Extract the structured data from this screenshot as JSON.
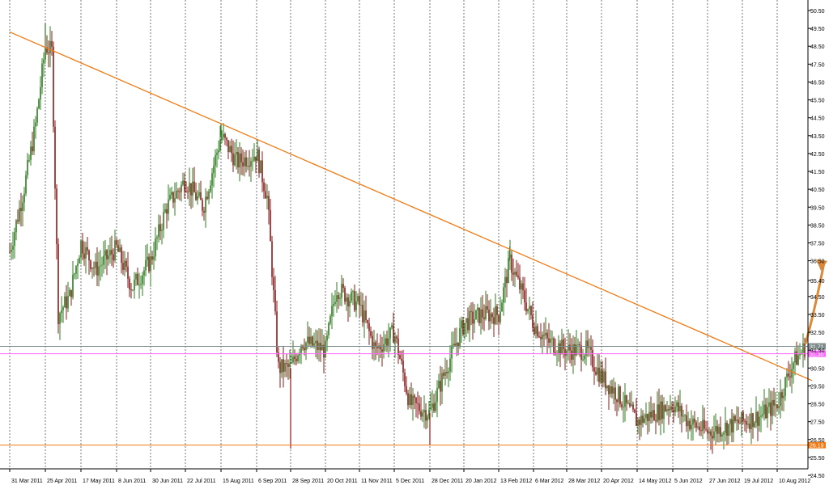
{
  "chart_data": {
    "type": "candlestick",
    "title": "",
    "xlabel": "",
    "ylabel": "",
    "ylim": [
      24.5,
      50.5
    ],
    "grid": "vertical dashed",
    "x_ticks": [
      "31 Mar 2011",
      "25 Apr 2011",
      "17 May 2011",
      "8 Jun 2011",
      "30 Jun 2011",
      "22 Jul 2011",
      "15 Aug 2011",
      "6 Sep 2011",
      "28 Sep 2011",
      "20 Oct 2011",
      "11 Nov 2011",
      "5 Dec 2011",
      "28 Dec 2011",
      "20 Jan 2012",
      "13 Feb 2012",
      "6 Mar 2012",
      "28 Mar 2012",
      "20 Apr 2012",
      "14 May 2012",
      "5 Jun 2012",
      "27 Jun 2012",
      "19 Jul 2012",
      "10 Aug 2012"
    ],
    "y_ticks": [
      "50.50",
      "49.50",
      "48.50",
      "47.50",
      "46.50",
      "45.50",
      "44.50",
      "43.50",
      "42.50",
      "41.50",
      "40.50",
      "39.50",
      "38.50",
      "37.50",
      "36.50",
      "35.40",
      "34.50",
      "33.50",
      "32.50",
      "31.50",
      "30.50",
      "29.50",
      "28.50",
      "27.50",
      "26.50",
      "25.50",
      "24.50"
    ],
    "close_path": [
      [
        "31 Mar 2011",
        37.0
      ],
      [
        "10 Apr 2011",
        40.5
      ],
      [
        "18 Apr 2011",
        44.0
      ],
      [
        "25 Apr 2011",
        48.5
      ],
      [
        "29 Apr 2011",
        48.2
      ],
      [
        "3 May 2011",
        33.5
      ],
      [
        "10 May 2011",
        34.5
      ],
      [
        "17 May 2011",
        37.5
      ],
      [
        "26 May 2011",
        36.0
      ],
      [
        "8 Jun 2011",
        37.2
      ],
      [
        "18 Jun 2011",
        35.0
      ],
      [
        "30 Jun 2011",
        36.5
      ],
      [
        "10 Jul 2011",
        39.5
      ],
      [
        "22 Jul 2011",
        41.0
      ],
      [
        "3 Aug 2011",
        39.5
      ],
      [
        "15 Aug 2011",
        43.5
      ],
      [
        "25 Aug 2011",
        42.0
      ],
      [
        "6 Sep 2011",
        42.5
      ],
      [
        "13 Sep 2011",
        40.0
      ],
      [
        "20 Sep 2011",
        30.5
      ],
      [
        "28 Sep 2011",
        30.5
      ],
      [
        "5 Oct 2011",
        32.0
      ],
      [
        "20 Oct 2011",
        31.5
      ],
      [
        "27 Oct 2011",
        35.0
      ],
      [
        "11 Nov 2011",
        34.0
      ],
      [
        "22 Nov 2011",
        31.5
      ],
      [
        "5 Dec 2011",
        32.5
      ],
      [
        "15 Dec 2011",
        28.5
      ],
      [
        "28 Dec 2011",
        28.0
      ],
      [
        "8 Jan 2012",
        30.5
      ],
      [
        "20 Jan 2012",
        33.0
      ],
      [
        "1 Feb 2012",
        33.5
      ],
      [
        "13 Feb 2012",
        33.5
      ],
      [
        "20 Feb 2012",
        36.5
      ],
      [
        "6 Mar 2012",
        33.0
      ],
      [
        "15 Mar 2012",
        32.0
      ],
      [
        "28 Mar 2012",
        31.5
      ],
      [
        "10 Apr 2012",
        31.5
      ],
      [
        "20 Apr 2012",
        30.0
      ],
      [
        "1 May 2012",
        29.0
      ],
      [
        "14 May 2012",
        27.5
      ],
      [
        "25 May 2012",
        28.0
      ],
      [
        "5 Jun 2012",
        28.5
      ],
      [
        "15 Jun 2012",
        27.5
      ],
      [
        "27 Jun 2012",
        26.9
      ],
      [
        "8 Jul 2012",
        27.2
      ],
      [
        "19 Jul 2012",
        27.5
      ],
      [
        "30 Jul 2012",
        27.8
      ],
      [
        "10 Aug 2012",
        28.5
      ],
      [
        "20 Aug 2012",
        30.8
      ],
      [
        "28 Aug 2012",
        31.71
      ]
    ],
    "lows": [
      [
        "28 Sep 2011",
        26.0
      ],
      [
        "28 Dec 2011",
        26.19
      ]
    ],
    "highs": [
      [
        "25 Apr 2011",
        49.8
      ],
      [
        "15 Aug 2011",
        44.2
      ],
      [
        "20 Feb 2012",
        37.3
      ]
    ],
    "trendline": {
      "color": "#f07a14",
      "from": [
        "31 Mar 2011",
        49.3
      ],
      "to": [
        "1 Sep 2012",
        29.8
      ]
    },
    "levels": [
      {
        "value": 26.19,
        "label": "26.19",
        "color": "#f07a14"
      },
      {
        "value": 31.3,
        "label": "31.30",
        "color": "#ff66ff"
      },
      {
        "value": 31.71,
        "label": "31.71",
        "color": "#7f8c8d"
      }
    ],
    "colors": {
      "bull": "#2d7d1f",
      "bear": "#8b1a1a",
      "arrow": "#d9893a"
    }
  }
}
